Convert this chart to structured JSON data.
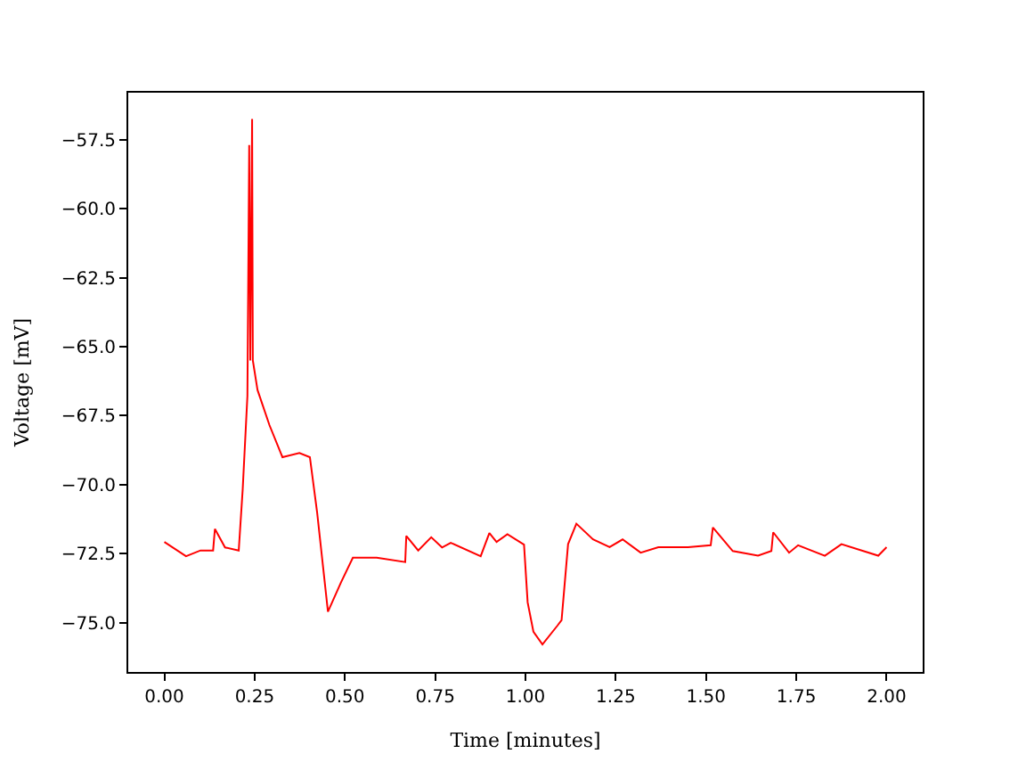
{
  "chart_data": {
    "type": "line",
    "xlabel": "Time [minutes]",
    "ylabel": "Voltage [mV]",
    "xlim": [
      -0.1,
      2.1
    ],
    "ylim": [
      -76.78,
      -55.8
    ],
    "xticks": [
      {
        "value": 0,
        "label": "0.00"
      },
      {
        "value": 0.25,
        "label": "0.25"
      },
      {
        "value": 0.5,
        "label": "0.50"
      },
      {
        "value": 0.75,
        "label": "0.75"
      },
      {
        "value": 1,
        "label": "1.00"
      },
      {
        "value": 1.25,
        "label": "1.25"
      },
      {
        "value": 1.5,
        "label": "1.50"
      },
      {
        "value": 1.75,
        "label": "1.75"
      },
      {
        "value": 2,
        "label": "2.00"
      }
    ],
    "yticks": [
      {
        "value": -57.5,
        "label": "−57.5"
      },
      {
        "value": -60,
        "label": "−60.0"
      },
      {
        "value": -62.5,
        "label": "−62.5"
      },
      {
        "value": -65,
        "label": "−65.0"
      },
      {
        "value": -67.5,
        "label": "−67.5"
      },
      {
        "value": -70,
        "label": "−70.0"
      },
      {
        "value": -72.5,
        "label": "−72.5"
      },
      {
        "value": -75,
        "label": "−75.0"
      }
    ],
    "marker": "none",
    "line_style": "solid",
    "series": [
      {
        "color": "#ff0000",
        "x": [
          0.0,
          0.06,
          0.1,
          0.135,
          0.14,
          0.168,
          0.206,
          0.217,
          0.23,
          0.235,
          0.238,
          0.243,
          0.245,
          0.258,
          0.291,
          0.327,
          0.374,
          0.403,
          0.423,
          0.453,
          0.489,
          0.522,
          0.588,
          0.667,
          0.67,
          0.703,
          0.739,
          0.769,
          0.793,
          0.876,
          0.9,
          0.92,
          0.95,
          0.996,
          1.006,
          1.022,
          1.047,
          1.088,
          1.1,
          1.118,
          1.141,
          1.187,
          1.233,
          1.269,
          1.319,
          1.368,
          1.45,
          1.513,
          1.519,
          1.574,
          1.644,
          1.681,
          1.686,
          1.73,
          1.755,
          1.829,
          1.875,
          1.977,
          2.0
        ],
        "values": [
          -72.07,
          -72.59,
          -72.38,
          -72.38,
          -71.6,
          -72.27,
          -72.38,
          -70.16,
          -66.78,
          -57.7,
          -65.5,
          -56.75,
          -65.5,
          -66.57,
          -67.84,
          -69.0,
          -68.85,
          -69.0,
          -71.0,
          -74.6,
          -73.54,
          -72.64,
          -72.64,
          -72.8,
          -71.85,
          -72.38,
          -71.9,
          -72.27,
          -72.1,
          -72.59,
          -71.75,
          -72.07,
          -71.79,
          -72.17,
          -74.26,
          -75.32,
          -75.78,
          -75.11,
          -74.9,
          -72.15,
          -71.41,
          -71.98,
          -72.26,
          -71.98,
          -72.46,
          -72.26,
          -72.26,
          -72.19,
          -71.55,
          -72.4,
          -72.57,
          -72.4,
          -71.72,
          -72.46,
          -72.19,
          -72.57,
          -72.15,
          -72.57,
          -72.26
        ]
      }
    ]
  }
}
